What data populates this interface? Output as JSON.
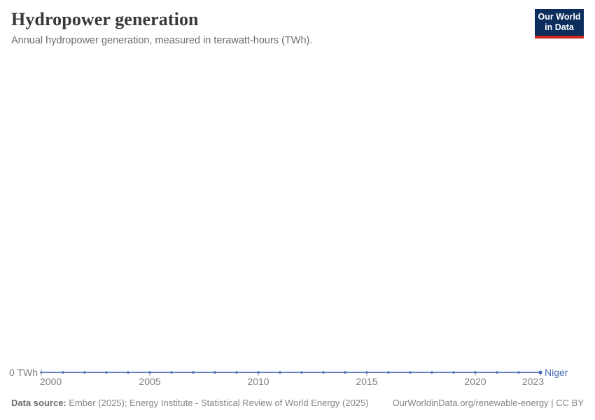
{
  "header": {
    "title": "Hydropower generation",
    "subtitle": "Annual hydropower generation, measured in terawatt-hours (TWh).",
    "logo": {
      "line1": "Our World",
      "line2": "in Data"
    }
  },
  "chart_data": {
    "type": "line",
    "title": "Hydropower generation",
    "subtitle": "Annual hydropower generation, measured in terawatt-hours (TWh).",
    "unit": "TWh",
    "grid": false,
    "y_zero_label": "0 TWh",
    "x_ticks": [
      2000,
      2005,
      2010,
      2015,
      2020,
      2023
    ],
    "xlim": [
      2000,
      2023
    ],
    "ylim": [
      0,
      0
    ],
    "series": [
      {
        "name": "Niger",
        "x": [
          2000,
          2001,
          2002,
          2003,
          2004,
          2005,
          2006,
          2007,
          2008,
          2009,
          2010,
          2011,
          2012,
          2013,
          2014,
          2015,
          2016,
          2017,
          2018,
          2019,
          2020,
          2021,
          2022,
          2023
        ],
        "values": [
          0,
          0,
          0,
          0,
          0,
          0,
          0,
          0,
          0,
          0,
          0,
          0,
          0,
          0,
          0,
          0,
          0,
          0,
          0,
          0,
          0,
          0,
          0,
          0
        ]
      }
    ],
    "legend_position": "right-of-line-end"
  },
  "colors": {
    "line": "#4a6db4",
    "logo_background": "#0c2e5c",
    "logo_bar": "#d0261c",
    "axis_text": "#7d7d7d",
    "tick": "#a7a7a7"
  },
  "footer": {
    "source_label": "Data source:",
    "source_text": "Ember (2025); Energy Institute - Statistical Review of World Energy (2025)",
    "attribution": "OurWorldinData.org/renewable-energy | CC BY"
  }
}
